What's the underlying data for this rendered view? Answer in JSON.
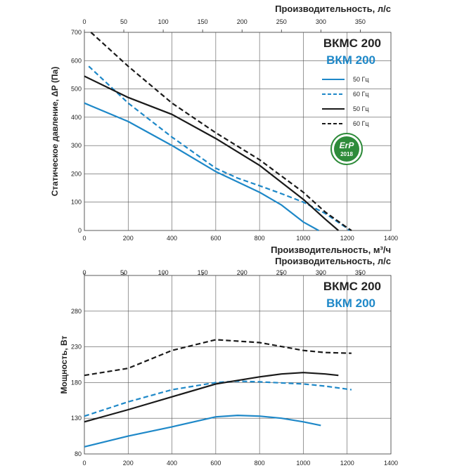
{
  "colors": {
    "vkm": "#1e88c8",
    "vkmc": "#1a1a1a",
    "grid": "#555555",
    "erp": "#2e8b3a"
  },
  "chart_data": [
    {
      "type": "line",
      "name": "pressure",
      "top_axis_title": "Производительность, л/с",
      "top_ticks": [
        "0",
        "50",
        "100",
        "150",
        "200",
        "250",
        "300",
        "350"
      ],
      "xlabel": "Производительность, м³/ч",
      "ylabel": "Статическое давление, ΔP (Па)",
      "xlim": [
        0,
        1400
      ],
      "ylim": [
        0,
        700
      ],
      "x_ticks": [
        "0",
        "200",
        "400",
        "600",
        "800",
        "1000",
        "1200",
        "1400"
      ],
      "y_ticks": [
        "0",
        "100",
        "200",
        "300",
        "400",
        "500",
        "600",
        "700"
      ],
      "model_names": [
        "ВКМС 200",
        "ВКМ 200"
      ],
      "legend": [
        "50 Гц",
        "60 Гц",
        "50 Гц",
        "60 Гц"
      ],
      "logo": {
        "top": "ErP",
        "bottom": "2018"
      },
      "series": [
        {
          "name": "ВКМ 200 — 50 Гц",
          "model": "vkm",
          "dash": false,
          "points": [
            [
              0,
              450
            ],
            [
              200,
              385
            ],
            [
              400,
              300
            ],
            [
              600,
              208
            ],
            [
              800,
              135
            ],
            [
              900,
              90
            ],
            [
              1000,
              30
            ],
            [
              1070,
              0
            ]
          ]
        },
        {
          "name": "ВКМ 200 — 60 Гц",
          "model": "vkm",
          "dash": true,
          "points": [
            [
              20,
              580
            ],
            [
              200,
              450
            ],
            [
              400,
              330
            ],
            [
              600,
              220
            ],
            [
              700,
              185
            ],
            [
              800,
              158
            ],
            [
              900,
              130
            ],
            [
              1000,
              100
            ],
            [
              1100,
              60
            ],
            [
              1200,
              8
            ],
            [
              1210,
              0
            ]
          ]
        },
        {
          "name": "ВКМС 200 — 50 Гц",
          "model": "vkmc",
          "dash": false,
          "points": [
            [
              0,
              545
            ],
            [
              200,
              470
            ],
            [
              400,
              410
            ],
            [
              600,
              325
            ],
            [
              800,
              230
            ],
            [
              1000,
              110
            ],
            [
              1100,
              40
            ],
            [
              1160,
              0
            ]
          ]
        },
        {
          "name": "ВКМС 200 — 60 Гц",
          "model": "vkmc",
          "dash": true,
          "points": [
            [
              30,
              700
            ],
            [
              200,
              580
            ],
            [
              400,
              450
            ],
            [
              600,
              345
            ],
            [
              800,
              250
            ],
            [
              1000,
              135
            ],
            [
              1100,
              65
            ],
            [
              1200,
              10
            ],
            [
              1220,
              0
            ]
          ]
        }
      ]
    },
    {
      "type": "line",
      "name": "power",
      "top_axis_title": "Производительность, л/с",
      "top_ticks": [
        "0",
        "50",
        "100",
        "150",
        "200",
        "250",
        "300",
        "350"
      ],
      "xlabel": "",
      "ylabel": "Мощность, Вт",
      "xlim": [
        0,
        1400
      ],
      "ylim": [
        80,
        330
      ],
      "x_ticks": [
        "0",
        "200",
        "400",
        "600",
        "800",
        "1000",
        "1200",
        "1400"
      ],
      "y_ticks": [
        "80",
        "130",
        "180",
        "230",
        "280"
      ],
      "model_names": [
        "ВКМС 200",
        "ВКМ 200"
      ],
      "series": [
        {
          "name": "ВКМ 200 — 50 Гц",
          "model": "vkm",
          "dash": false,
          "points": [
            [
              0,
              90
            ],
            [
              200,
              105
            ],
            [
              400,
              118
            ],
            [
              600,
              132
            ],
            [
              700,
              134
            ],
            [
              800,
              133
            ],
            [
              900,
              130
            ],
            [
              1000,
              125
            ],
            [
              1080,
              120
            ]
          ]
        },
        {
          "name": "ВКМ 200 — 60 Гц",
          "model": "vkm",
          "dash": true,
          "points": [
            [
              0,
              133
            ],
            [
              200,
              153
            ],
            [
              400,
              170
            ],
            [
              600,
              180
            ],
            [
              700,
              182
            ],
            [
              800,
              181
            ],
            [
              1000,
              178
            ],
            [
              1100,
              175
            ],
            [
              1220,
              170
            ]
          ]
        },
        {
          "name": "ВКМС 200 — 50 Гц",
          "model": "vkmc",
          "dash": false,
          "points": [
            [
              0,
              125
            ],
            [
              200,
              142
            ],
            [
              400,
              160
            ],
            [
              600,
              178
            ],
            [
              800,
              188
            ],
            [
              900,
              192
            ],
            [
              1000,
              194
            ],
            [
              1100,
              192
            ],
            [
              1160,
              190
            ]
          ]
        },
        {
          "name": "ВКМС 200 — 60 Гц",
          "model": "vkmc",
          "dash": true,
          "points": [
            [
              0,
              190
            ],
            [
              200,
              200
            ],
            [
              400,
              225
            ],
            [
              600,
              240
            ],
            [
              800,
              236
            ],
            [
              1000,
              225
            ],
            [
              1100,
              222
            ],
            [
              1220,
              221
            ]
          ]
        }
      ]
    }
  ]
}
